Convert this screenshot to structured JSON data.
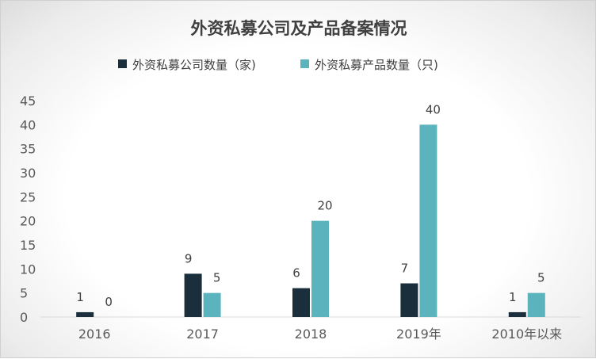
{
  "chart_data": {
    "type": "bar",
    "title": "外资私募公司及产品备案情况",
    "categories": [
      "2016",
      "2017",
      "2018",
      "2019年",
      "2010年以来"
    ],
    "series": [
      {
        "name": "外资私募公司数量（家)",
        "values": [
          1,
          9,
          6,
          7,
          1
        ],
        "color": "#1a2e3b"
      },
      {
        "name": "外资私募产品数量（只)",
        "values": [
          0,
          5,
          20,
          40,
          5
        ],
        "color": "#5bb3bd"
      }
    ],
    "y_ticks": [
      "0",
      "5",
      "10",
      "15",
      "20",
      "25",
      "30",
      "35",
      "40",
      "45"
    ],
    "ylim": [
      0,
      45
    ],
    "xlabel": "",
    "ylabel": "",
    "grid": false,
    "legend_position": "top"
  }
}
